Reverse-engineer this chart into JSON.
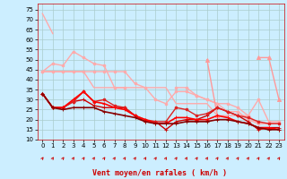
{
  "title": "",
  "xlabel": "Vent moyen/en rafales ( km/h )",
  "ylabel": "",
  "background_color": "#cceeff",
  "grid_color": "#aacccc",
  "x": [
    0,
    1,
    2,
    3,
    4,
    5,
    6,
    7,
    8,
    9,
    10,
    11,
    12,
    13,
    14,
    15,
    16,
    17,
    18,
    19,
    20,
    21,
    22,
    23
  ],
  "series": [
    {
      "y": [
        73,
        63,
        null,
        null,
        null,
        null,
        null,
        null,
        null,
        null,
        null,
        null,
        null,
        null,
        null,
        null,
        null,
        null,
        null,
        null,
        null,
        null,
        null,
        null
      ],
      "color": "#ffaaaa",
      "lw": 1.0,
      "marker": null,
      "zorder": 2
    },
    {
      "y": [
        44,
        48,
        47,
        54,
        51,
        48,
        47,
        36,
        36,
        null,
        null,
        null,
        null,
        null,
        null,
        null,
        null,
        null,
        null,
        null,
        null,
        null,
        null,
        null
      ],
      "color": "#ffaaaa",
      "lw": 1.0,
      "marker": "o",
      "markersize": 2,
      "zorder": 2
    },
    {
      "y": [
        44,
        44,
        44,
        44,
        44,
        44,
        44,
        44,
        44,
        38,
        36,
        30,
        28,
        34,
        34,
        32,
        30,
        28,
        24,
        24,
        20,
        18,
        18,
        18
      ],
      "color": "#ffaaaa",
      "lw": 1.0,
      "marker": "o",
      "markersize": 2,
      "zorder": 1
    },
    {
      "y": [
        44,
        44,
        44,
        44,
        44,
        36,
        36,
        36,
        36,
        36,
        36,
        36,
        36,
        28,
        28,
        28,
        28,
        22,
        22,
        22,
        22,
        18,
        18,
        18
      ],
      "color": "#ffaaaa",
      "lw": 1.0,
      "marker": null,
      "zorder": 1
    },
    {
      "y": [
        null,
        null,
        null,
        null,
        null,
        null,
        null,
        null,
        null,
        null,
        null,
        null,
        null,
        36,
        36,
        32,
        30,
        28,
        28,
        26,
        22,
        30,
        19,
        19
      ],
      "color": "#ffaaaa",
      "lw": 1.0,
      "marker": "o",
      "markersize": 2,
      "zorder": 2
    },
    {
      "y": [
        null,
        null,
        null,
        null,
        null,
        null,
        null,
        null,
        null,
        null,
        null,
        null,
        null,
        null,
        null,
        null,
        50,
        22,
        null,
        null,
        null,
        null,
        null,
        null
      ],
      "color": "#ff9999",
      "lw": 1.0,
      "marker": "^",
      "markersize": 3,
      "zorder": 2
    },
    {
      "y": [
        null,
        null,
        null,
        null,
        null,
        null,
        null,
        null,
        null,
        null,
        null,
        null,
        null,
        null,
        null,
        null,
        null,
        null,
        null,
        null,
        null,
        51,
        51,
        30
      ],
      "color": "#ff9999",
      "lw": 1.0,
      "marker": "^",
      "markersize": 3,
      "zorder": 2
    },
    {
      "y": [
        33,
        26,
        26,
        29,
        30,
        27,
        26,
        26,
        26,
        22,
        19,
        19,
        15,
        19,
        20,
        20,
        22,
        26,
        24,
        22,
        19,
        15,
        16,
        16
      ],
      "color": "#cc0000",
      "lw": 1.0,
      "marker": "+",
      "markersize": 3,
      "zorder": 3
    },
    {
      "y": [
        33,
        26,
        26,
        29,
        34,
        29,
        30,
        27,
        26,
        22,
        20,
        19,
        19,
        26,
        25,
        22,
        23,
        26,
        24,
        22,
        21,
        19,
        18,
        18
      ],
      "color": "#dd2222",
      "lw": 1.0,
      "marker": "o",
      "markersize": 2,
      "zorder": 3
    },
    {
      "y": [
        33,
        26,
        26,
        30,
        34,
        29,
        28,
        26,
        25,
        22,
        20,
        18,
        18,
        21,
        21,
        20,
        20,
        22,
        21,
        19,
        18,
        16,
        16,
        15
      ],
      "color": "#ff0000",
      "lw": 1.2,
      "marker": "+",
      "markersize": 3,
      "zorder": 4
    },
    {
      "y": [
        33,
        26,
        25,
        26,
        26,
        26,
        24,
        23,
        22,
        21,
        19,
        18,
        18,
        18,
        19,
        19,
        19,
        20,
        20,
        19,
        18,
        16,
        15,
        15
      ],
      "color": "#880000",
      "lw": 1.2,
      "marker": "+",
      "markersize": 3,
      "zorder": 4
    }
  ],
  "ylim": [
    10,
    78
  ],
  "xlim": [
    -0.5,
    23.5
  ],
  "yticks": [
    10,
    15,
    20,
    25,
    30,
    35,
    40,
    45,
    50,
    55,
    60,
    65,
    70,
    75
  ],
  "xticks": [
    0,
    1,
    2,
    3,
    4,
    5,
    6,
    7,
    8,
    9,
    10,
    11,
    12,
    13,
    14,
    15,
    16,
    17,
    18,
    19,
    20,
    21,
    22,
    23
  ],
  "arrow_color": "#cc0000",
  "xlabel_color": "#cc0000",
  "xlabel_fontsize": 6,
  "tick_fontsize": 5,
  "ytick_fontsize": 5
}
